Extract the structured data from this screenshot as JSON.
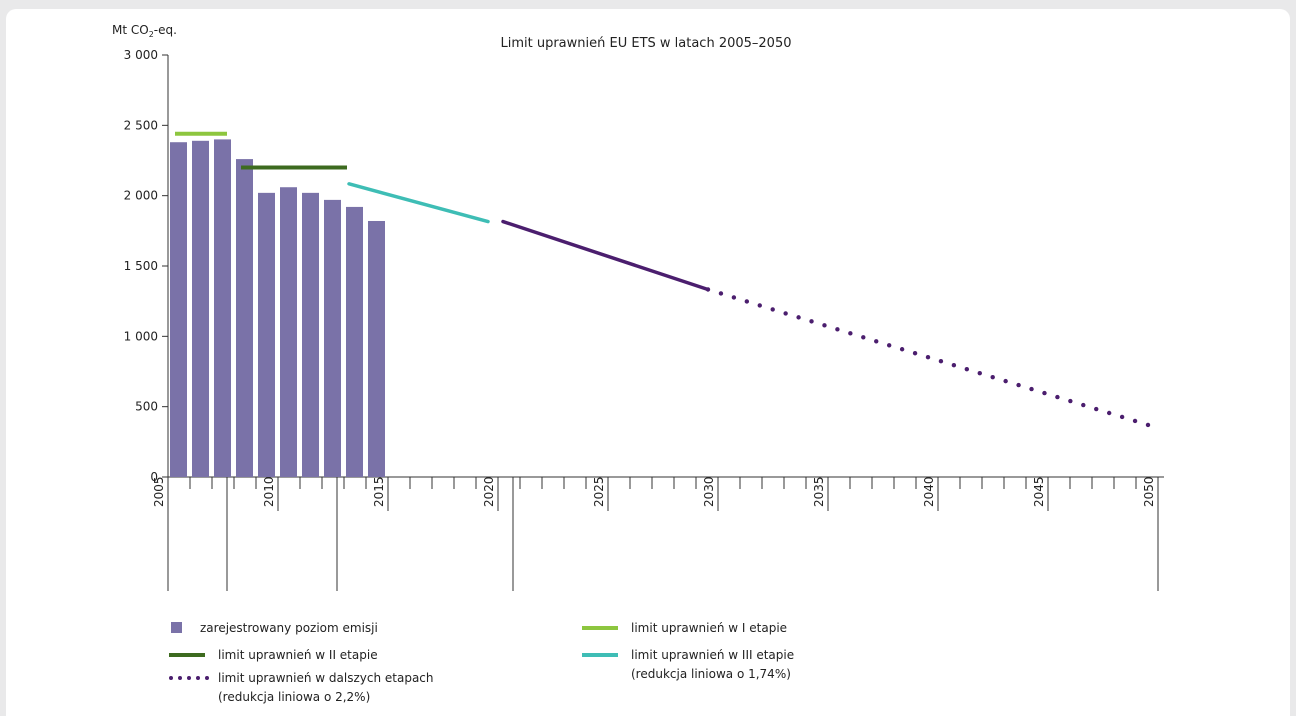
{
  "chart_data": {
    "type": "bar",
    "title": "Limit uprawnień EU ETS w latach 2005–2050",
    "ylabel": "Mt CO₂-eq.",
    "ylim": [
      0,
      3000
    ],
    "yticks": [
      0,
      500,
      1000,
      1500,
      2000,
      2500,
      3000
    ],
    "ytick_labels": [
      "0",
      "500",
      "1 000",
      "1 500",
      "2 000",
      "2 500",
      "3 000"
    ],
    "xlim": [
      2005,
      2050
    ],
    "xtick_labels": [
      "2005",
      "2010",
      "2015",
      "2020",
      "2025",
      "2030",
      "2035",
      "2040",
      "2045",
      "2050"
    ],
    "xticks": [
      2005,
      2010,
      2015,
      2020,
      2025,
      2030,
      2035,
      2040,
      2045,
      2050
    ],
    "period_dividers": [
      2008,
      2013,
      2021
    ],
    "series": [
      {
        "name": "zarejestrowany poziom emisji",
        "type": "bar",
        "color": "#7a72a8",
        "x": [
          2005,
          2006,
          2007,
          2008,
          2009,
          2010,
          2011,
          2012,
          2013,
          2014
        ],
        "values": [
          2380,
          2390,
          2400,
          2260,
          2020,
          2060,
          2020,
          1970,
          1920,
          1820
        ]
      },
      {
        "name": "limit uprawnień w I etapie",
        "type": "step",
        "color": "#8dc63f",
        "x": [
          2005,
          2008
        ],
        "values": [
          2440,
          2440
        ]
      },
      {
        "name": "limit uprawnień w II etapie",
        "type": "step",
        "color": "#3d6b1f",
        "x": [
          2008,
          2013
        ],
        "values": [
          2200,
          2200
        ]
      },
      {
        "name": "limit uprawnień w III etapie",
        "name_line2": "(redukcja liniowa o 1,74%)",
        "type": "line",
        "color": "#3ebdb5",
        "x": [
          2013,
          2020
        ],
        "values": [
          2084,
          1816
        ]
      },
      {
        "name": "limit uprawnień w dalszych etapach",
        "name_line2": "(redukcja liniowa o 2,2%)",
        "type": "line",
        "color": "#4b1e6e",
        "x": [
          2020,
          2030
        ],
        "values": [
          1816,
          1333
        ]
      },
      {
        "name": "limit uprawnień w dalszych etapach",
        "type": "dotted",
        "color": "#4b1e6e",
        "x": [
          2030,
          2050
        ],
        "values": [
          1333,
          370
        ]
      }
    ],
    "legend": {
      "left": [
        {
          "label": "zarejestrowany poziom emisji",
          "kind": "square",
          "color": "#7a72a8"
        },
        {
          "label": "limit uprawnień w II etapie",
          "kind": "solid",
          "color": "#3d6b1f"
        },
        {
          "label": "limit uprawnień w dalszych etapach",
          "label2": "(redukcja liniowa o 2,2%)",
          "kind": "dotted",
          "color": "#4b1e6e"
        }
      ],
      "right": [
        {
          "label": "limit uprawnień w I etapie",
          "kind": "solid",
          "color": "#8dc63f"
        },
        {
          "label": "limit uprawnień w III etapie",
          "label2": "(redukcja liniowa o 1,74%)",
          "kind": "solid",
          "color": "#3ebdb5"
        }
      ]
    }
  }
}
